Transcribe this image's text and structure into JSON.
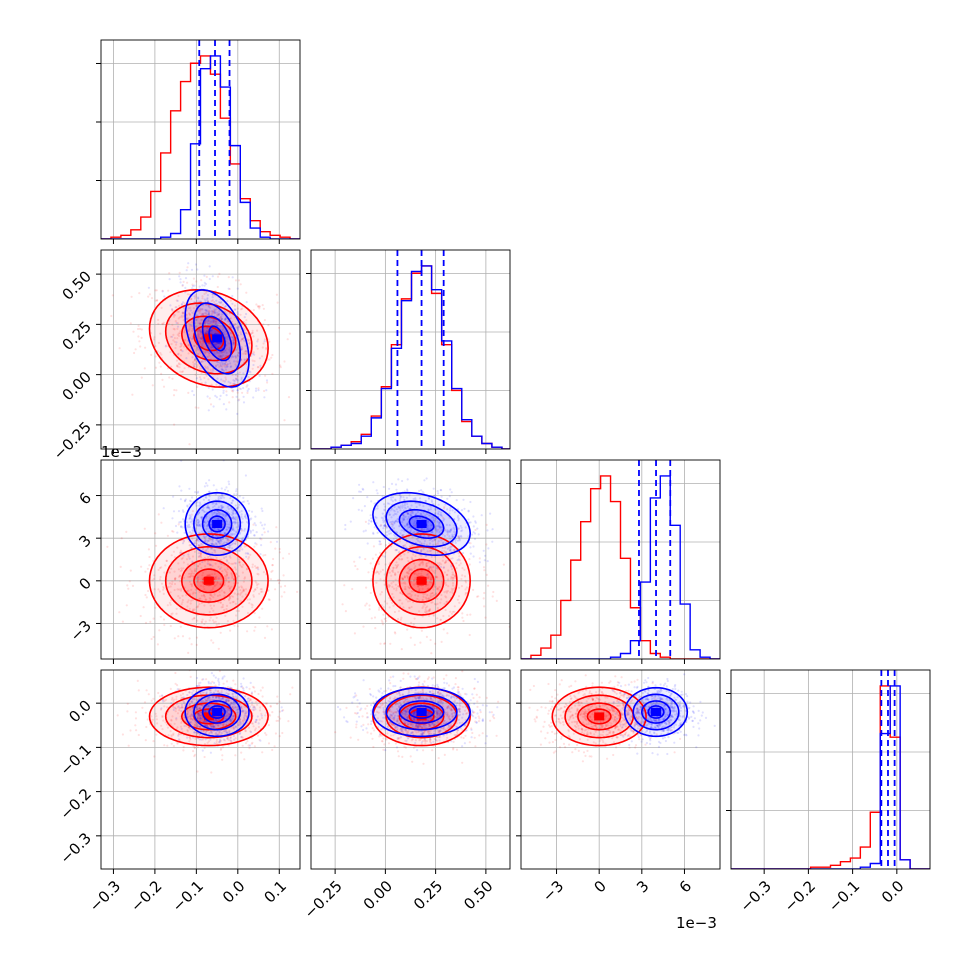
{
  "colors": {
    "series_blue": "#0000ff",
    "series_red": "#ff0000",
    "grid": "#b0b0b0",
    "axes": "#000000"
  },
  "offset_labels": {
    "param3_y": "1e−3",
    "param3_x": "1e−3"
  },
  "chart_data": {
    "type": "corner",
    "grid": true,
    "series": [
      {
        "name": "",
        "color": "#0000ff"
      },
      {
        "name": "",
        "color": "#ff0000"
      }
    ],
    "parameters": [
      {
        "axis_range": [
          -0.33,
          0.15
        ],
        "ticks": [
          -0.3,
          -0.2,
          -0.1,
          0.0,
          0.1
        ],
        "tick_labels": [
          "−0.3",
          "−0.2",
          "−0.1",
          "0.0",
          "0.1"
        ]
      },
      {
        "axis_range": [
          -0.37,
          0.62
        ],
        "ticks": [
          -0.25,
          0.0,
          0.25,
          0.5
        ],
        "tick_labels": [
          "−0.25",
          "0.00",
          "0.25",
          "0.50"
        ]
      },
      {
        "axis_range": [
          -5.5,
          8.5
        ],
        "ticks": [
          -3,
          0,
          3,
          6
        ],
        "tick_labels": [
          "−3",
          "0",
          "3",
          "6"
        ],
        "scale_note": "1e-3"
      },
      {
        "axis_range": [
          -0.375,
          0.075
        ],
        "ticks": [
          -0.3,
          -0.2,
          -0.1,
          0.0
        ],
        "tick_labels": [
          "−0.3",
          "−0.2",
          "−0.1",
          "0.0"
        ]
      }
    ],
    "quantile_lines": [
      [
        -0.093,
        -0.055,
        -0.02
      ],
      [
        0.06,
        0.18,
        0.29
      ],
      [
        2.8,
        4.0,
        5.0
      ],
      [
        -0.035,
        -0.02,
        -0.005
      ]
    ],
    "histograms": [
      {
        "bin_edges": [
          -0.33,
          -0.306,
          -0.282,
          -0.258,
          -0.234,
          -0.21,
          -0.186,
          -0.162,
          -0.138,
          -0.114,
          -0.09,
          -0.066,
          -0.042,
          -0.018,
          0.006,
          0.03,
          0.054,
          0.078,
          0.102,
          0.126,
          0.15
        ],
        "blue": [
          0,
          0,
          0,
          0,
          0,
          0,
          0.01,
          0.03,
          0.16,
          0.52,
          0.93,
          1.0,
          0.83,
          0.51,
          0.2,
          0.06,
          0.01,
          0,
          0,
          0
        ],
        "red": [
          0,
          0.01,
          0.02,
          0.05,
          0.12,
          0.26,
          0.47,
          0.7,
          0.86,
          0.96,
          1.0,
          0.9,
          0.66,
          0.41,
          0.22,
          0.1,
          0.04,
          0.02,
          0.01,
          0
        ]
      },
      {
        "bin_edges": [
          -0.37,
          -0.32,
          -0.27,
          -0.22,
          -0.17,
          -0.12,
          -0.07,
          -0.02,
          0.03,
          0.08,
          0.13,
          0.18,
          0.23,
          0.28,
          0.33,
          0.38,
          0.43,
          0.48,
          0.53,
          0.58,
          0.62
        ],
        "blue": [
          0,
          0,
          0.01,
          0.02,
          0.03,
          0.07,
          0.17,
          0.33,
          0.55,
          0.81,
          0.97,
          1.0,
          0.87,
          0.59,
          0.33,
          0.16,
          0.07,
          0.03,
          0.01,
          0
        ],
        "red": [
          0,
          0,
          0.01,
          0.02,
          0.04,
          0.08,
          0.18,
          0.34,
          0.57,
          0.82,
          0.96,
          1.0,
          0.85,
          0.57,
          0.32,
          0.15,
          0.07,
          0.03,
          0.01,
          0
        ]
      },
      {
        "bin_edges": [
          -5.5,
          -4.8,
          -4.1,
          -3.4,
          -2.7,
          -2.0,
          -1.3,
          -0.6,
          0.1,
          0.8,
          1.5,
          2.2,
          2.9,
          3.6,
          4.3,
          5.0,
          5.7,
          6.4,
          7.1,
          7.8,
          8.5
        ],
        "blue": [
          0,
          0,
          0,
          0,
          0,
          0,
          0,
          0,
          0,
          0.01,
          0.03,
          0.1,
          0.42,
          0.88,
          1.0,
          0.73,
          0.3,
          0.05,
          0.01,
          0
        ],
        "red": [
          0,
          0.02,
          0.06,
          0.13,
          0.32,
          0.54,
          0.75,
          0.93,
          1.0,
          0.86,
          0.55,
          0.28,
          0.1,
          0.03,
          0.01,
          0,
          0,
          0,
          0,
          0
        ]
      },
      {
        "bin_edges": [
          -0.375,
          -0.3525,
          -0.33,
          -0.3075,
          -0.285,
          -0.2625,
          -0.24,
          -0.2175,
          -0.195,
          -0.1725,
          -0.15,
          -0.1275,
          -0.105,
          -0.0825,
          -0.06,
          -0.0375,
          -0.015,
          0.0075,
          0.03,
          0.0525,
          0.075
        ],
        "blue": [
          0,
          0,
          0,
          0,
          0,
          0,
          0,
          0,
          0,
          0,
          0,
          0,
          0,
          0.01,
          0.03,
          0.74,
          1.0,
          0.05,
          0,
          0
        ],
        "red": [
          0,
          0,
          0,
          0,
          0,
          0,
          0,
          0,
          0.01,
          0.01,
          0.02,
          0.04,
          0.06,
          0.12,
          0.31,
          1.0,
          0.72,
          0.05,
          0,
          0
        ]
      }
    ],
    "pairs": [
      {
        "x_param": 0,
        "y_param": 1,
        "blue": {
          "mean": [
            -0.05,
            0.18
          ],
          "sd": [
            0.035,
            0.11
          ],
          "rho": -0.45
        },
        "red": {
          "mean": [
            -0.07,
            0.18
          ],
          "sd": [
            0.065,
            0.11
          ],
          "rho": -0.2
        }
      },
      {
        "x_param": 0,
        "y_param": 2,
        "blue": {
          "mean": [
            -0.05,
            4.0
          ],
          "sd": [
            0.035,
            1.0
          ],
          "rho": 0.0
        },
        "red": {
          "mean": [
            -0.07,
            0.0
          ],
          "sd": [
            0.065,
            1.5
          ],
          "rho": 0.0
        }
      },
      {
        "x_param": 1,
        "y_param": 2,
        "blue": {
          "mean": [
            0.18,
            4.0
          ],
          "sd": [
            0.11,
            1.0
          ],
          "rho": -0.3
        },
        "red": {
          "mean": [
            0.18,
            0.0
          ],
          "sd": [
            0.11,
            1.5
          ],
          "rho": 0.0
        }
      },
      {
        "x_param": 0,
        "y_param": 3,
        "blue": {
          "mean": [
            -0.05,
            -0.02
          ],
          "sd": [
            0.035,
            0.025
          ],
          "rho": 0.0
        },
        "red": {
          "mean": [
            -0.07,
            -0.03
          ],
          "sd": [
            0.065,
            0.03
          ],
          "rho": 0.0
        }
      },
      {
        "x_param": 1,
        "y_param": 3,
        "blue": {
          "mean": [
            0.18,
            -0.02
          ],
          "sd": [
            0.11,
            0.025
          ],
          "rho": 0.0
        },
        "red": {
          "mean": [
            0.18,
            -0.03
          ],
          "sd": [
            0.11,
            0.03
          ],
          "rho": 0.0
        }
      },
      {
        "x_param": 2,
        "y_param": 3,
        "blue": {
          "mean": [
            4.0,
            -0.02
          ],
          "sd": [
            1.0,
            0.025
          ],
          "rho": 0.0
        },
        "red": {
          "mean": [
            0.0,
            -0.03
          ],
          "sd": [
            1.5,
            0.03
          ],
          "rho": 0.0
        }
      }
    ]
  }
}
